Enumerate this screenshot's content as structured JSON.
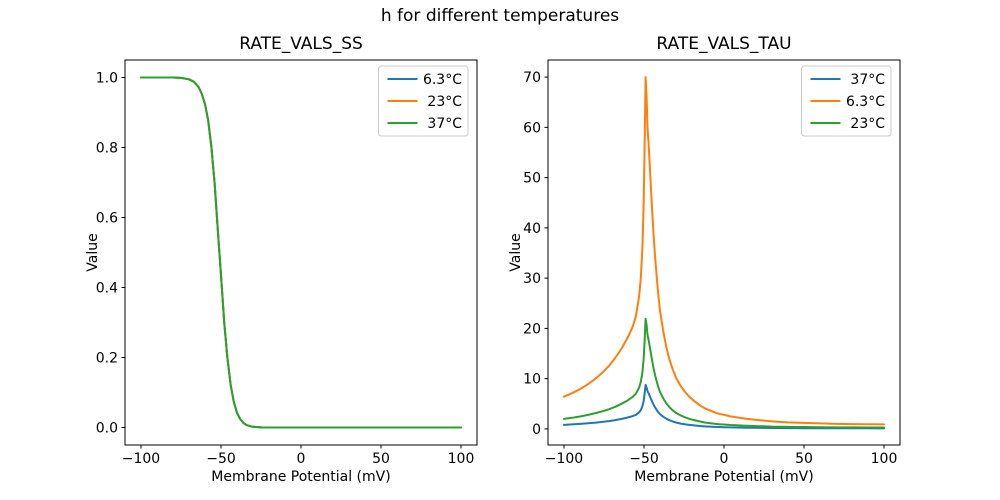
{
  "figure": {
    "suptitle": "h for different temperatures",
    "background": "#ffffff"
  },
  "colors": {
    "blue": "#1f77b4",
    "orange": "#ff7f0e",
    "green": "#2ca02c",
    "spine": "#000000",
    "legend_border": "#cccccc"
  },
  "chart_data": [
    {
      "type": "line",
      "title": "RATE_VALS_SS",
      "xlabel": "Membrane Potential (mV)",
      "ylabel": "Value",
      "xlim": [
        -110,
        110
      ],
      "ylim": [
        -0.05,
        1.05
      ],
      "xticks": [
        -100,
        -50,
        0,
        50,
        100
      ],
      "xtick_labels": [
        "−100",
        "−50",
        "0",
        "50",
        "100"
      ],
      "yticks": [
        0.0,
        0.2,
        0.4,
        0.6,
        0.8,
        1.0
      ],
      "ytick_labels": [
        "0.0",
        "0.2",
        "0.4",
        "0.6",
        "0.8",
        "1.0"
      ],
      "legend_position": "upper right",
      "grid": false,
      "note": "all three temperature curves coincide exactly; green (drawn last) is visible",
      "x": [
        -100,
        -90,
        -80,
        -75,
        -70,
        -67,
        -64,
        -62,
        -60,
        -58,
        -56,
        -54,
        -52,
        -50,
        -48,
        -46,
        -44,
        -42,
        -40,
        -38,
        -36,
        -34,
        -32,
        -30,
        -27,
        -24,
        -20,
        -15,
        -10,
        0,
        20,
        40,
        60,
        80,
        100
      ],
      "series": [
        {
          "name": "6.3°C",
          "color": "#1f77b4",
          "values": [
            1.0,
            1.0,
            1.0,
            0.999,
            0.995,
            0.988,
            0.973,
            0.953,
            0.924,
            0.877,
            0.801,
            0.699,
            0.565,
            0.435,
            0.301,
            0.199,
            0.123,
            0.073,
            0.042,
            0.024,
            0.013,
            0.007,
            0.004,
            0.002,
            0.001,
            0.0,
            0.0,
            0.0,
            0.0,
            0.0,
            0.0,
            0.0,
            0.0,
            0.0,
            0.0
          ]
        },
        {
          "name": "23°C",
          "color": "#ff7f0e",
          "values": [
            1.0,
            1.0,
            1.0,
            0.999,
            0.995,
            0.988,
            0.973,
            0.953,
            0.924,
            0.877,
            0.801,
            0.699,
            0.565,
            0.435,
            0.301,
            0.199,
            0.123,
            0.073,
            0.042,
            0.024,
            0.013,
            0.007,
            0.004,
            0.002,
            0.001,
            0.0,
            0.0,
            0.0,
            0.0,
            0.0,
            0.0,
            0.0,
            0.0,
            0.0,
            0.0
          ]
        },
        {
          "name": "37°C",
          "color": "#2ca02c",
          "values": [
            1.0,
            1.0,
            1.0,
            0.999,
            0.995,
            0.988,
            0.973,
            0.953,
            0.924,
            0.877,
            0.801,
            0.699,
            0.565,
            0.435,
            0.301,
            0.199,
            0.123,
            0.073,
            0.042,
            0.024,
            0.013,
            0.007,
            0.004,
            0.002,
            0.001,
            0.0,
            0.0,
            0.0,
            0.0,
            0.0,
            0.0,
            0.0,
            0.0,
            0.0,
            0.0
          ]
        }
      ]
    },
    {
      "type": "line",
      "title": "RATE_VALS_TAU",
      "xlabel": "Membrane Potential (mV)",
      "ylabel": "Value",
      "xlim": [
        -110,
        110
      ],
      "ylim": [
        -3.2,
        73.4
      ],
      "xticks": [
        -100,
        -50,
        0,
        50,
        100
      ],
      "xtick_labels": [
        "−100",
        "−50",
        "0",
        "50",
        "100"
      ],
      "yticks": [
        0,
        10,
        20,
        30,
        40,
        50,
        60,
        70
      ],
      "ytick_labels": [
        "0",
        "10",
        "20",
        "30",
        "40",
        "50",
        "60",
        "70"
      ],
      "legend_position": "upper right",
      "grid": false,
      "note": "peaked tau curves, maximum near -49 mV: 6.3°C peaks ~70, 23°C ~22, 37°C ~8.8",
      "x": [
        -100,
        -95,
        -90,
        -85,
        -80,
        -76,
        -72,
        -68,
        -64,
        -60,
        -57,
        -55,
        -53,
        -52,
        -51,
        -50.2,
        -49.6,
        -49,
        -48.4,
        -47.8,
        -47,
        -46,
        -45,
        -44,
        -43,
        -42,
        -41,
        -40,
        -38,
        -36,
        -34,
        -32,
        -30,
        -27,
        -24,
        -21,
        -18,
        -15,
        -12,
        -9,
        -6,
        -3,
        0,
        4,
        8,
        12,
        16,
        20,
        25,
        30,
        35,
        40,
        45,
        50,
        60,
        70,
        80,
        90,
        100
      ],
      "series": [
        {
          "name": "37°C",
          "color": "#1f77b4",
          "values": [
            0.8,
            0.89,
            0.99,
            1.11,
            1.26,
            1.4,
            1.56,
            1.76,
            2.0,
            2.29,
            2.55,
            2.81,
            3.31,
            3.75,
            4.5,
            5.63,
            7.0,
            8.75,
            8.25,
            7.5,
            7.0,
            6.25,
            5.5,
            4.81,
            4.25,
            3.75,
            3.31,
            2.94,
            2.44,
            2.03,
            1.71,
            1.48,
            1.28,
            1.06,
            0.9,
            0.78,
            0.68,
            0.59,
            0.51,
            0.46,
            0.41,
            0.38,
            0.35,
            0.31,
            0.29,
            0.26,
            0.24,
            0.23,
            0.21,
            0.19,
            0.18,
            0.16,
            0.16,
            0.15,
            0.14,
            0.13,
            0.12,
            0.12,
            0.11
          ]
        },
        {
          "name": "6.3°C",
          "color": "#ff7f0e",
          "values": [
            6.4,
            7.1,
            7.9,
            8.9,
            10.1,
            11.2,
            12.5,
            14.1,
            16.0,
            18.3,
            20.4,
            22.5,
            26.5,
            30.0,
            36.0,
            45.0,
            56.0,
            70.0,
            66.0,
            60.0,
            56.0,
            50.0,
            44.0,
            38.5,
            34.0,
            30.0,
            26.5,
            23.5,
            19.5,
            16.2,
            13.7,
            11.8,
            10.2,
            8.5,
            7.2,
            6.2,
            5.4,
            4.7,
            4.1,
            3.7,
            3.3,
            3.0,
            2.8,
            2.5,
            2.3,
            2.1,
            1.95,
            1.8,
            1.65,
            1.5,
            1.4,
            1.3,
            1.25,
            1.2,
            1.1,
            1.0,
            0.95,
            0.92,
            0.9
          ]
        },
        {
          "name": "23°C",
          "color": "#2ca02c",
          "values": [
            2.0,
            2.22,
            2.47,
            2.78,
            3.16,
            3.5,
            3.91,
            4.41,
            5.0,
            5.72,
            6.38,
            7.03,
            8.28,
            9.38,
            11.25,
            14.06,
            17.5,
            21.88,
            20.63,
            18.75,
            17.5,
            15.63,
            13.75,
            12.03,
            10.63,
            9.38,
            8.28,
            7.34,
            6.09,
            5.06,
            4.28,
            3.69,
            3.19,
            2.66,
            2.25,
            1.94,
            1.69,
            1.47,
            1.28,
            1.16,
            1.03,
            0.94,
            0.88,
            0.78,
            0.72,
            0.66,
            0.61,
            0.56,
            0.52,
            0.47,
            0.44,
            0.41,
            0.39,
            0.38,
            0.34,
            0.31,
            0.3,
            0.29,
            0.28
          ]
        }
      ]
    }
  ]
}
